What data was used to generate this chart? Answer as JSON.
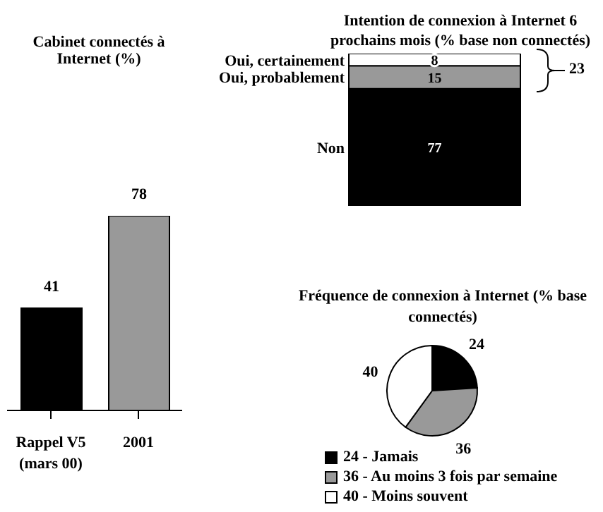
{
  "chart_data": [
    {
      "type": "bar",
      "title": "Cabinet connectés à Internet (%)",
      "categories": [
        "Rappel V5 (mars 00)",
        "2001"
      ],
      "values": [
        41,
        78
      ],
      "colors": [
        "#000000",
        "#999999"
      ],
      "data_labels": true
    },
    {
      "type": "bar",
      "stacked": true,
      "title": "Intention de connexion à Internet 6 prochains mois (% base non connectés)",
      "categories": [
        null
      ],
      "series": [
        {
          "name": "Non",
          "color": "#000000",
          "values": [
            77
          ]
        },
        {
          "name": "Oui, probablement",
          "color": "#999999",
          "values": [
            15
          ]
        },
        {
          "name": "Oui, certainement",
          "color": "#ffffff",
          "values": [
            8
          ]
        }
      ],
      "data_labels": true,
      "annotations": [
        "23"
      ]
    },
    {
      "type": "pie",
      "title": "Fréquence de connexion à Internet (% base connectés)",
      "categories": [
        "24 - Jamais",
        "36 - Au moins 3 fois par semaine",
        "40 - Moins souvent"
      ],
      "values": [
        24,
        36,
        40
      ],
      "colors": [
        "#000000",
        "#999999",
        "#ffffff"
      ],
      "data_labels": true,
      "legend": "bottom"
    }
  ]
}
